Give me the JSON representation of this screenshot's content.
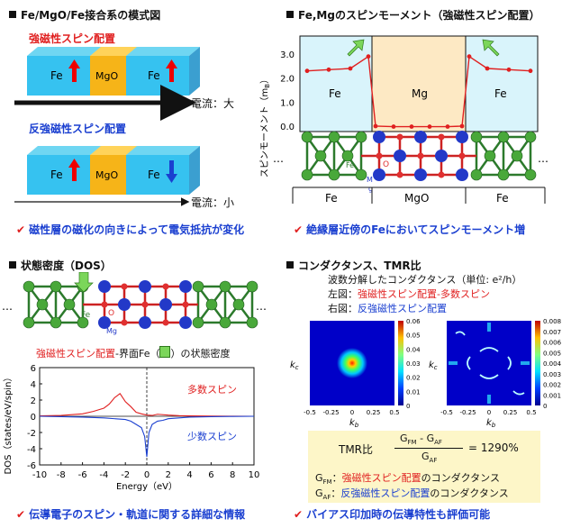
{
  "q1": {
    "title": "Fe/MgO/Fe接合系の模式図",
    "ferro_label": "強磁性スピン配置",
    "anti_label": "反強磁性スピン配置",
    "fe": "Fe",
    "mgo": "MgO",
    "current_large": "電流：大",
    "current_small": "電流：小",
    "conclusion": "磁性層の磁化の向きによって電気抵抗が変化"
  },
  "q2": {
    "title": "Fe,Mgのスピンモーメント（強磁性スピン配置）",
    "ylabel": "スピンモーメント（m",
    "ylabel_sub": "B",
    "ylabel_end": "）",
    "yticks": [
      "3.0",
      "2.0",
      "1.0",
      "0.0"
    ],
    "region_fe": "Fe",
    "region_mg": "Mg",
    "struct_fe": "Fe",
    "struct_mgo": "MgO",
    "atom_o": "O",
    "atom_mg": "M",
    "atom_mg2": "g",
    "atom_fe": "Fe",
    "dots": "…",
    "conclusion": "絶縁層近傍のFeにおいてスピンモーメント増"
  },
  "q3": {
    "title": "状態密度（DOS）",
    "caption_red": "強磁性スピン配置",
    "caption_rest": "-界面Fe（",
    "caption_end": "）の状態密度",
    "ylabel": "DOS（states/eV/spin）",
    "xlabel": "Energy（eV）",
    "majority": "多数スピン",
    "minority": "少数スピン",
    "atom_o": "O",
    "atom_mg": "Mg",
    "atom_fe": "Fe",
    "dots": "…",
    "conclusion": "伝導電子のスピン・軌道に関する詳細な情報"
  },
  "q4": {
    "title": "コンダクタンス、TMR比",
    "line1": "波数分解したコンダクタンス（単位: e²/h）",
    "left_prefix": "左図：",
    "left_label": "強磁性スピン配置-多数スピン",
    "right_prefix": "右図：",
    "right_label": "反強磁性スピン配置",
    "kc": "k",
    "kc_sub": "c",
    "kb": "k",
    "kb_sub": "b",
    "left_cbar": [
      "0.06",
      "0.05",
      "0.04",
      "0.03",
      "0.02",
      "0.01",
      "0"
    ],
    "right_cbar": [
      "0.008",
      "0.007",
      "0.006",
      "0.005",
      "0.004",
      "0.003",
      "0.002",
      "0.001",
      "0"
    ],
    "axis_ticks": [
      "-0.5",
      "-0.25",
      "0",
      "0.25",
      "0.5"
    ],
    "tmr_label": "TMR比",
    "tmr_num": "G",
    "tmr_fm": "FM",
    "tmr_minus": " - G",
    "tmr_af": "AF",
    "tmr_den": "G",
    "tmr_result": "= 1290%",
    "gfm_def_red": "強磁性スピン配置",
    "gfm_def_rest": "のコンダクタンス",
    "gaf_def_blue": "反強磁性スピン配置",
    "gaf_def_rest": "のコンダクタンス",
    "conclusion": "バイアス印加時の伝導特性も評価可能"
  },
  "chart_data": [
    {
      "type": "line",
      "title": "Fe,Mgのスピンモーメント（強磁性スピン配置）",
      "ylabel": "スピンモーメント（mB）",
      "ylim": [
        0,
        3.0
      ],
      "series": [
        {
          "values": [
            2.3,
            2.35,
            2.4,
            2.9,
            0.0,
            -0.02,
            -0.02,
            -0.02,
            -0.02,
            0.0,
            2.9,
            2.4,
            2.35,
            2.3
          ]
        }
      ]
    },
    {
      "type": "line",
      "title": "状態密度（DOS）",
      "xlabel": "Energy（eV）",
      "ylabel": "DOS（states/eV/spin）",
      "xlim": [
        -10,
        10
      ],
      "ylim": [
        -6,
        6
      ],
      "series": [
        {
          "name": "多数スピン",
          "x": [
            -10,
            -8,
            -7,
            -6,
            -5,
            -4,
            -3.5,
            -3,
            -2.5,
            -2,
            -1.5,
            -1,
            -0.5,
            0,
            0.5,
            1,
            2,
            3,
            4,
            6,
            8,
            10
          ],
          "values": [
            0.05,
            0.1,
            0.2,
            0.3,
            0.6,
            1.0,
            1.5,
            2.3,
            2.8,
            1.8,
            1.2,
            0.5,
            0.3,
            0.15,
            0.1,
            0.25,
            0.15,
            0.08,
            0.05,
            0.02,
            0.01,
            0
          ]
        },
        {
          "name": "少数スピン",
          "x": [
            -10,
            -8,
            -6,
            -4,
            -2,
            -1.5,
            -1,
            -0.5,
            -0.2,
            0,
            0.2,
            0.5,
            1,
            1.5,
            2,
            3,
            4,
            6,
            8,
            10
          ],
          "values": [
            0,
            -0.05,
            -0.1,
            -0.2,
            -0.4,
            -0.6,
            -1.0,
            -1.4,
            -2.5,
            -5.0,
            -2.0,
            -1.0,
            -0.6,
            -0.5,
            -0.3,
            -0.2,
            -0.1,
            -0.05,
            -0.02,
            0
          ]
        }
      ]
    }
  ]
}
